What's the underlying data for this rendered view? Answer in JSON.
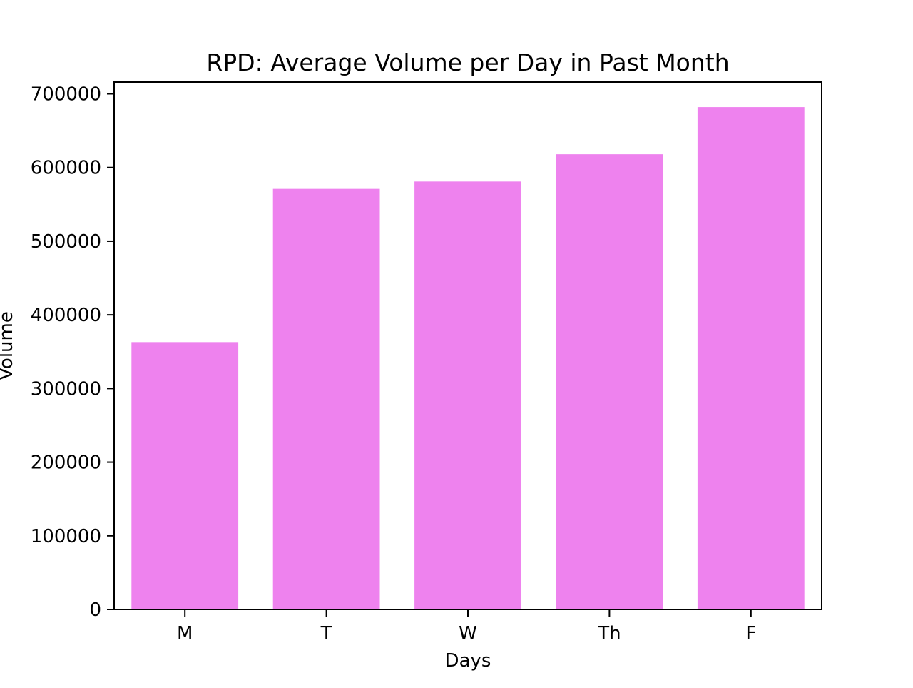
{
  "chart_data": {
    "type": "bar",
    "title": "RPD: Average Volume per Day in Past Month",
    "xlabel": "Days",
    "ylabel": "Volume",
    "categories": [
      "M",
      "T",
      "W",
      "Th",
      "F"
    ],
    "values": [
      363000,
      571000,
      581000,
      618000,
      682000
    ],
    "ylim": [
      0,
      716000
    ],
    "yticks": [
      0,
      100000,
      200000,
      300000,
      400000,
      500000,
      600000,
      700000
    ],
    "ytick_labels": [
      "0",
      "100000",
      "200000",
      "300000",
      "400000",
      "500000",
      "600000",
      "700000"
    ],
    "bar_color": "#EE82EE",
    "grid": false,
    "legend": false
  }
}
